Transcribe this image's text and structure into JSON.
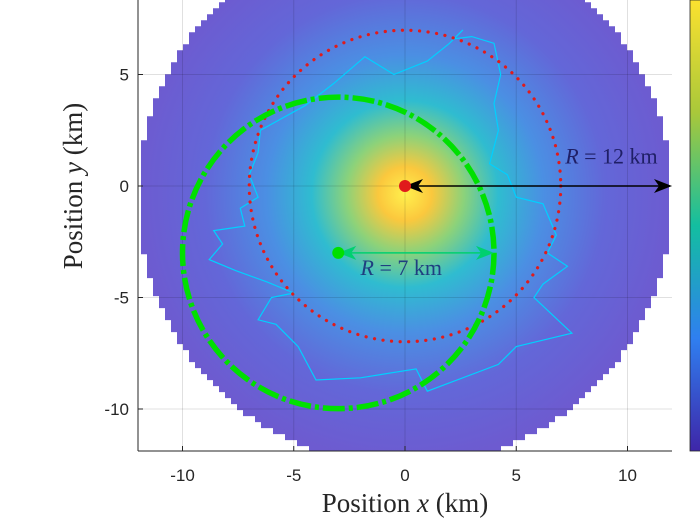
{
  "chart_data": {
    "type": "heatmap",
    "xlabel": "Position x (km)",
    "ylabel": "Position y (km)",
    "xlim": [
      -12,
      12
    ],
    "ylim": [
      -12,
      8
    ],
    "x_ticks": [
      -10,
      -5,
      0,
      5,
      10
    ],
    "y_ticks": [
      -10,
      -5,
      0,
      5
    ],
    "grid": true,
    "colormap": "parula",
    "colors": {
      "heat_low": "#6a5bd3",
      "heat_mid": "#3aa1e0",
      "heat_high": "#fbd24a",
      "dotted_circle": "#e01b1b",
      "dashed_circle": "#00e000",
      "boundary_line": "#00d0ff",
      "arrow_black": "#000000"
    },
    "heat_disk": {
      "center": [
        0,
        -0.5
      ],
      "radius_km": 12
    },
    "circles": [
      {
        "style": "dotted",
        "center": [
          0,
          0
        ],
        "radius_km": 7,
        "color": "#e01b1b"
      },
      {
        "style": "dash-dot",
        "center": [
          -3,
          -3
        ],
        "radius_km": 7,
        "color": "#00e000"
      }
    ],
    "points": [
      {
        "x": 0,
        "y": 0,
        "color": "#e01b1b"
      },
      {
        "x": -3,
        "y": -3,
        "color": "#00e000"
      }
    ],
    "arrows": [
      {
        "from": [
          0,
          0
        ],
        "to": [
          12,
          0
        ],
        "color": "#000000"
      },
      {
        "from": [
          -3,
          -3
        ],
        "to": [
          4,
          -3
        ],
        "color": "#00d070"
      }
    ],
    "annotations": [
      {
        "text": "R = 12 km",
        "x": 7.2,
        "y": 1.0,
        "color": "#1f1f66"
      },
      {
        "text": "R = 7 km",
        "x": -2,
        "y": -4.0,
        "color": "#1f3f80"
      }
    ],
    "boundary": [
      [
        -6.5,
        2.5
      ],
      [
        -4.5,
        3.6
      ],
      [
        -3.2,
        4.6
      ],
      [
        -1.8,
        5.8
      ],
      [
        -0.5,
        5.0
      ],
      [
        1.0,
        5.6
      ],
      [
        2.0,
        6.4
      ],
      [
        2.6,
        7.0
      ],
      [
        2.2,
        6.6
      ],
      [
        3.0,
        6.7
      ],
      [
        4.0,
        6.4
      ],
      [
        4.3,
        5.0
      ],
      [
        4.0,
        3.7
      ],
      [
        4.2,
        2.5
      ],
      [
        3.8,
        1.0
      ],
      [
        4.6,
        0.5
      ],
      [
        5.0,
        -0.5
      ],
      [
        6.2,
        -0.8
      ],
      [
        6.8,
        -2.2
      ],
      [
        6.4,
        -3.0
      ],
      [
        7.3,
        -3.6
      ],
      [
        6.2,
        -4.4
      ],
      [
        5.8,
        -5.0
      ],
      [
        7.5,
        -6.6
      ],
      [
        5.0,
        -7.2
      ],
      [
        4.2,
        -8.0
      ],
      [
        1.0,
        -9.2
      ],
      [
        0.5,
        -8.2
      ],
      [
        -2.0,
        -8.6
      ],
      [
        -4.0,
        -8.7
      ],
      [
        -4.8,
        -7.2
      ],
      [
        -5.8,
        -6.2
      ],
      [
        -6.6,
        -6.0
      ],
      [
        -6.0,
        -5.0
      ],
      [
        -5.0,
        -4.8
      ],
      [
        -6.2,
        -4.3
      ],
      [
        -7.6,
        -3.8
      ],
      [
        -8.8,
        -3.3
      ],
      [
        -8.2,
        -2.6
      ],
      [
        -8.6,
        -2.0
      ],
      [
        -7.2,
        -1.8
      ],
      [
        -7.4,
        -1.0
      ],
      [
        -6.6,
        -0.5
      ],
      [
        -7.0,
        0.5
      ],
      [
        -6.6,
        1.5
      ],
      [
        -6.5,
        2.5
      ]
    ]
  }
}
